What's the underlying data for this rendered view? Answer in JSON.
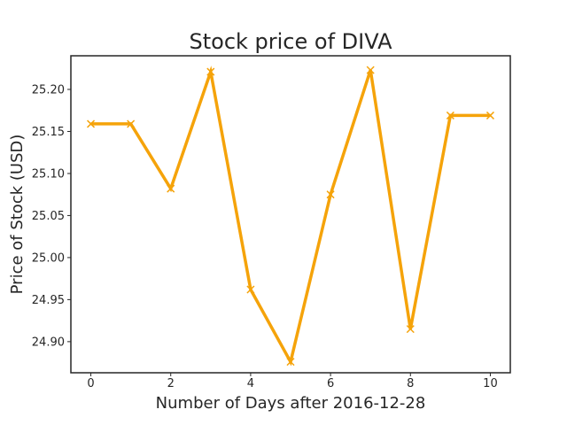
{
  "chart_data": {
    "type": "line",
    "title": "Stock price of DIVA",
    "xlabel": "Number of Days after 2016-12-28",
    "ylabel": "Price of Stock (USD)",
    "x": [
      0,
      1,
      2,
      3,
      4,
      5,
      6,
      7,
      8,
      9,
      10
    ],
    "series": [
      {
        "values": [
          25.159,
          25.159,
          25.082,
          25.221,
          24.962,
          24.876,
          25.075,
          25.223,
          24.915,
          25.169,
          25.169
        ],
        "color": "#f5a30a",
        "marker": "x"
      }
    ],
    "xlim": [
      -0.5,
      10.5
    ],
    "ylim": [
      24.863,
      25.24
    ],
    "xticks": [
      "0",
      "2",
      "4",
      "6",
      "8",
      "10"
    ],
    "yticks": [
      "24.90",
      "24.95",
      "25.00",
      "25.05",
      "25.10",
      "25.15",
      "25.20"
    ],
    "grid": false
  }
}
